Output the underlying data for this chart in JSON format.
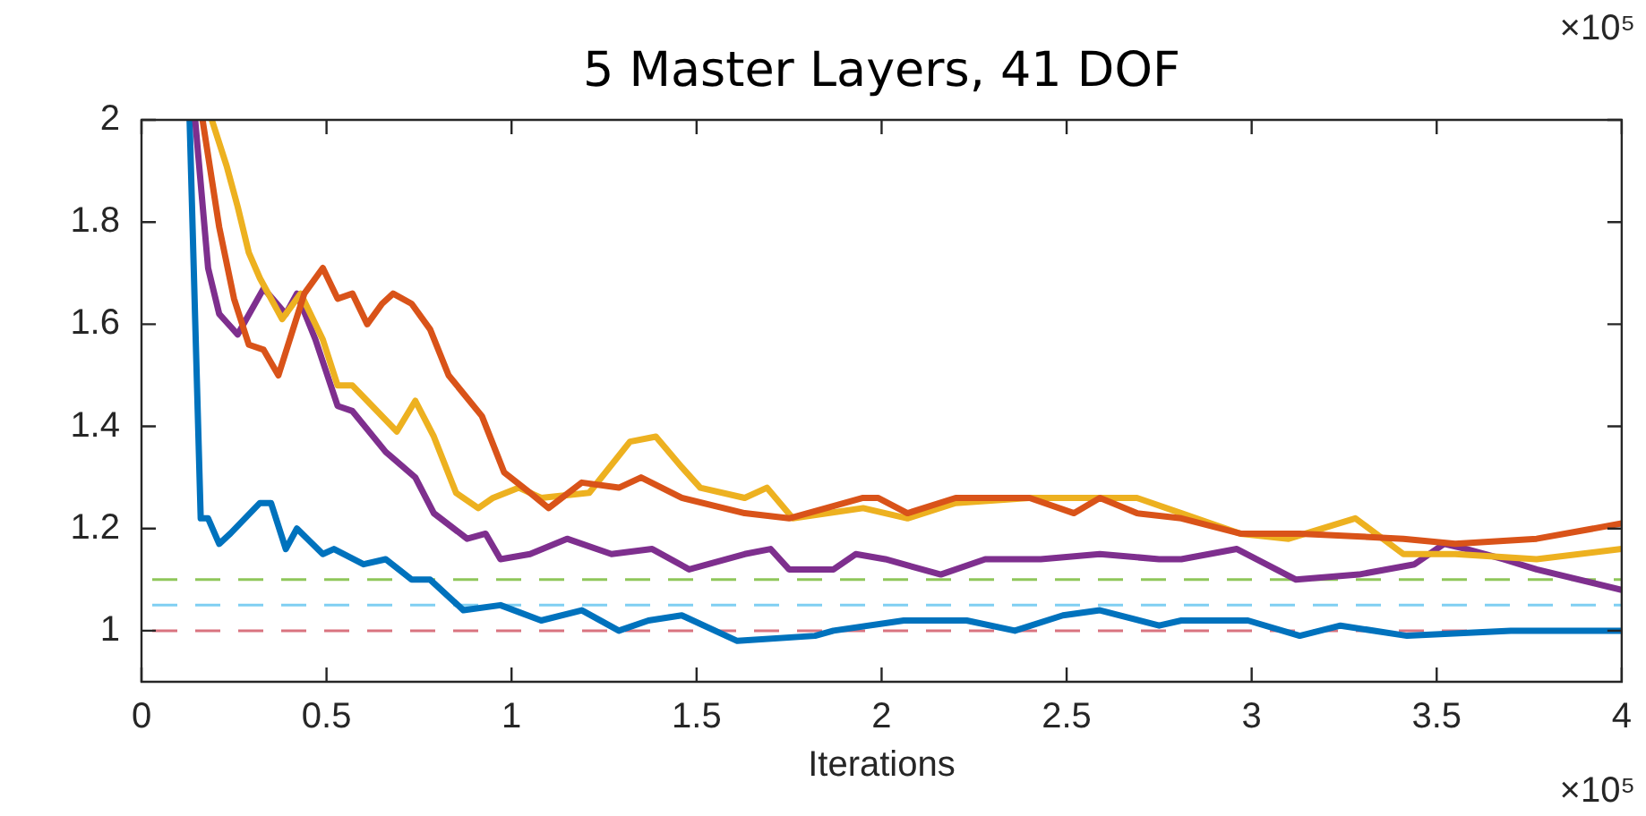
{
  "chart_data": {
    "type": "line",
    "title": "5 Master Layers, 41 DOF",
    "xlabel": "Iterations",
    "annotations": [
      "×10⁵",
      "×10⁵"
    ],
    "xlim": [
      0,
      4
    ],
    "xticks": [
      0,
      0.5,
      1,
      1.5,
      2,
      2.5,
      3,
      3.5,
      4
    ],
    "ylim": [
      0.9,
      2
    ],
    "yticks": [
      1,
      1.2,
      1.4,
      1.6,
      1.8,
      2
    ],
    "grid": false,
    "legend": false,
    "ref_lines": [
      {
        "axis": "y",
        "value": 1.1,
        "color": "#8fc65a",
        "line_style": "dashed"
      },
      {
        "axis": "y",
        "value": 1.05,
        "color": "#7fcff2",
        "line_style": "dashed"
      },
      {
        "axis": "y",
        "value": 1,
        "color": "#d9737f",
        "line_style": "dashed"
      }
    ],
    "series": [
      {
        "color": "#d95319",
        "x": [
          0.165,
          0.21,
          0.25,
          0.29,
          0.33,
          0.37,
          0.44,
          0.49,
          0.53,
          0.57,
          0.61,
          0.65,
          0.68,
          0.73,
          0.78,
          0.83,
          0.92,
          0.98,
          1.05,
          1.1,
          1.19,
          1.29,
          1.35,
          1.46,
          1.63,
          1.75,
          1.95,
          1.99,
          2.07,
          2.2,
          2.4,
          2.52,
          2.59,
          2.69,
          2.81,
          2.97,
          3.13,
          3.41,
          3.55,
          3.77,
          4
        ],
        "values": [
          2,
          1.79,
          1.65,
          1.56,
          1.55,
          1.5,
          1.66,
          1.71,
          1.65,
          1.66,
          1.6,
          1.64,
          1.66,
          1.64,
          1.59,
          1.5,
          1.42,
          1.31,
          1.27,
          1.24,
          1.29,
          1.28,
          1.3,
          1.26,
          1.23,
          1.22,
          1.26,
          1.26,
          1.23,
          1.26,
          1.26,
          1.23,
          1.26,
          1.23,
          1.22,
          1.19,
          1.19,
          1.18,
          1.17,
          1.18,
          1.21
        ]
      },
      {
        "color": "#edb120",
        "x": [
          0.19,
          0.23,
          0.26,
          0.29,
          0.32,
          0.38,
          0.43,
          0.49,
          0.53,
          0.57,
          0.61,
          0.69,
          0.74,
          0.79,
          0.85,
          0.91,
          0.95,
          1.02,
          1.08,
          1.21,
          1.32,
          1.39,
          1.46,
          1.51,
          1.63,
          1.69,
          1.76,
          1.95,
          2.07,
          2.2,
          2.4,
          2.59,
          2.69,
          2.81,
          2.97,
          3.1,
          3.28,
          3.41,
          3.55,
          3.77,
          4
        ],
        "values": [
          2,
          1.91,
          1.83,
          1.74,
          1.69,
          1.61,
          1.66,
          1.57,
          1.48,
          1.48,
          1.45,
          1.39,
          1.45,
          1.38,
          1.27,
          1.24,
          1.26,
          1.28,
          1.26,
          1.27,
          1.37,
          1.38,
          1.32,
          1.28,
          1.26,
          1.28,
          1.22,
          1.24,
          1.22,
          1.25,
          1.26,
          1.26,
          1.26,
          1.23,
          1.19,
          1.18,
          1.22,
          1.15,
          1.15,
          1.14,
          1.16
        ]
      },
      {
        "color": "#7e2f8e",
        "x": [
          0.145,
          0.18,
          0.21,
          0.26,
          0.33,
          0.39,
          0.42,
          0.47,
          0.53,
          0.57,
          0.66,
          0.74,
          0.79,
          0.88,
          0.93,
          0.97,
          1.05,
          1.15,
          1.27,
          1.38,
          1.48,
          1.63,
          1.7,
          1.75,
          1.87,
          1.93,
          2.01,
          2.16,
          2.28,
          2.43,
          2.59,
          2.75,
          2.81,
          2.96,
          3.12,
          3.29,
          3.44,
          3.52,
          3.58,
          3.68,
          3.77,
          4
        ],
        "values": [
          2,
          1.71,
          1.62,
          1.58,
          1.67,
          1.62,
          1.66,
          1.57,
          1.44,
          1.43,
          1.35,
          1.3,
          1.23,
          1.18,
          1.19,
          1.14,
          1.15,
          1.18,
          1.15,
          1.16,
          1.12,
          1.15,
          1.16,
          1.12,
          1.12,
          1.15,
          1.14,
          1.11,
          1.14,
          1.14,
          1.15,
          1.14,
          1.14,
          1.16,
          1.1,
          1.11,
          1.13,
          1.17,
          1.16,
          1.14,
          1.12,
          1.08
        ]
      },
      {
        "color": "#0072bd",
        "x": [
          0.13,
          0.16,
          0.18,
          0.21,
          0.24,
          0.32,
          0.35,
          0.39,
          0.42,
          0.49,
          0.52,
          0.6,
          0.66,
          0.73,
          0.78,
          0.87,
          0.97,
          1.08,
          1.19,
          1.29,
          1.37,
          1.46,
          1.61,
          1.82,
          1.87,
          2.06,
          2.12,
          2.23,
          2.36,
          2.49,
          2.59,
          2.75,
          2.81,
          2.99,
          3.13,
          3.24,
          3.42,
          3.7,
          4
        ],
        "values": [
          2,
          1.22,
          1.22,
          1.17,
          1.19,
          1.25,
          1.25,
          1.16,
          1.2,
          1.15,
          1.16,
          1.13,
          1.14,
          1.1,
          1.1,
          1.04,
          1.05,
          1.02,
          1.04,
          1,
          1.02,
          1.03,
          0.98,
          0.99,
          1,
          1.02,
          1.02,
          1.02,
          1,
          1.03,
          1.04,
          1.01,
          1.02,
          1.02,
          0.99,
          1.01,
          0.99,
          1,
          1
        ]
      }
    ]
  }
}
